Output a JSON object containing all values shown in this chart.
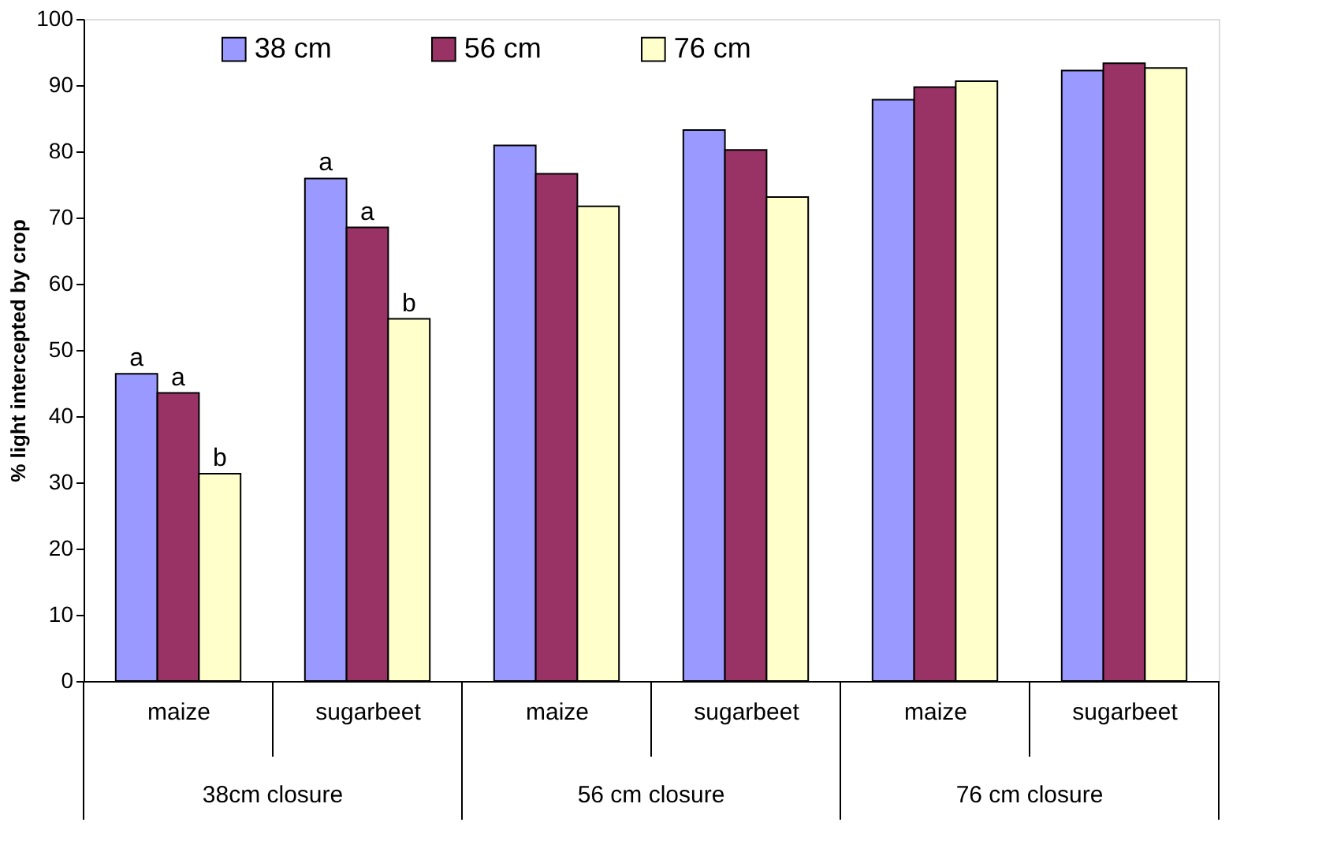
{
  "chart_data": {
    "type": "bar",
    "ylabel": "% light intercepted by crop",
    "categories": [
      "maize",
      "sugarbeet",
      "maize",
      "sugarbeet",
      "maize",
      "sugarbeet"
    ],
    "series": [
      {
        "name": "38 cm",
        "color": "#9999ff",
        "values": [
          46.4,
          75.9,
          80.9,
          83.2,
          87.8,
          92.2
        ],
        "value_labels": [
          "a",
          "a",
          null,
          null,
          null,
          null
        ]
      },
      {
        "name": "56 cm",
        "color": "#993366",
        "values": [
          43.5,
          68.5,
          76.6,
          80.2,
          89.7,
          93.3
        ],
        "value_labels": [
          "a",
          "a",
          null,
          null,
          null,
          null
        ]
      },
      {
        "name": "76 cm",
        "color": "#ffffcc",
        "values": [
          31.3,
          54.7,
          71.7,
          73.1,
          90.6,
          92.6
        ],
        "value_labels": [
          "b",
          "b",
          null,
          null,
          null,
          null
        ]
      }
    ],
    "annotations": [
      "38cm closure",
      "56 cm closure",
      "76 cm closure"
    ],
    "ylim": [
      0,
      100
    ],
    "yticks": [
      0,
      10,
      20,
      30,
      40,
      50,
      60,
      70,
      80,
      90,
      100
    ],
    "grid": false,
    "legend": "top"
  }
}
